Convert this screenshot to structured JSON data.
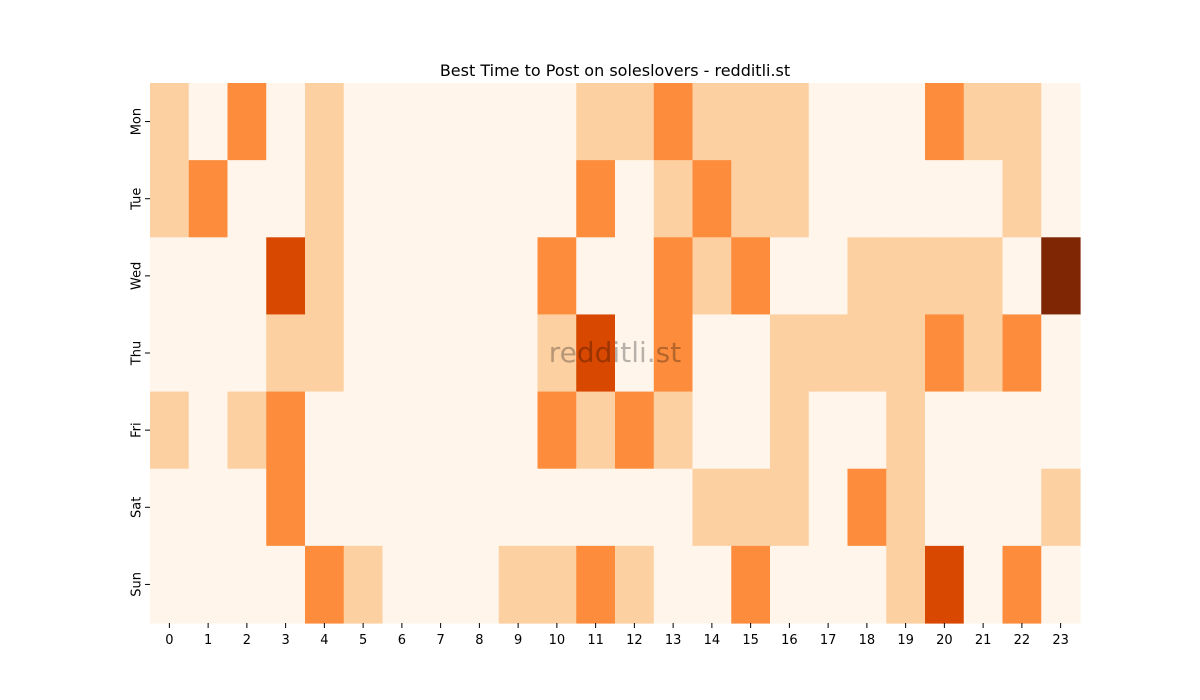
{
  "chart_data": {
    "type": "heatmap",
    "title": "Best Time to Post on soleslovers - redditli.st",
    "watermark": "redditli.st",
    "x": [
      "0",
      "1",
      "2",
      "3",
      "4",
      "5",
      "6",
      "7",
      "8",
      "9",
      "10",
      "11",
      "12",
      "13",
      "14",
      "15",
      "16",
      "17",
      "18",
      "19",
      "20",
      "21",
      "22",
      "23"
    ],
    "y": [
      "Mon",
      "Tue",
      "Wed",
      "Thu",
      "Fri",
      "Sat",
      "Sun"
    ],
    "xlabel": "",
    "ylabel": "",
    "colormap": "Oranges",
    "color_levels": [
      "#fff5eb",
      "#fdd0a2",
      "#fd8d3c",
      "#d94801",
      "#7f2704"
    ],
    "values": [
      [
        1,
        0,
        2,
        0,
        1,
        0,
        0,
        0,
        0,
        0,
        0,
        1,
        1,
        2,
        1,
        1,
        1,
        0,
        0,
        0,
        2,
        1,
        1,
        0
      ],
      [
        1,
        2,
        0,
        0,
        1,
        0,
        0,
        0,
        0,
        0,
        0,
        2,
        0,
        1,
        2,
        1,
        1,
        0,
        0,
        0,
        0,
        0,
        1,
        0
      ],
      [
        0,
        0,
        0,
        3,
        1,
        0,
        0,
        0,
        0,
        0,
        2,
        0,
        0,
        2,
        1,
        2,
        0,
        0,
        1,
        1,
        1,
        1,
        0,
        4
      ],
      [
        0,
        0,
        0,
        1,
        1,
        0,
        0,
        0,
        0,
        0,
        1,
        3,
        0,
        2,
        0,
        0,
        1,
        1,
        1,
        1,
        2,
        1,
        2,
        0
      ],
      [
        1,
        0,
        1,
        2,
        0,
        0,
        0,
        0,
        0,
        0,
        2,
        1,
        2,
        1,
        0,
        0,
        1,
        0,
        0,
        1,
        0,
        0,
        0,
        0
      ],
      [
        0,
        0,
        0,
        2,
        0,
        0,
        0,
        0,
        0,
        0,
        0,
        0,
        0,
        0,
        1,
        1,
        1,
        0,
        2,
        1,
        0,
        0,
        0,
        1
      ],
      [
        0,
        0,
        0,
        0,
        2,
        1,
        0,
        0,
        0,
        1,
        1,
        2,
        1,
        0,
        0,
        2,
        0,
        0,
        0,
        1,
        3,
        0,
        2,
        0
      ]
    ],
    "grid": false,
    "legend": "none"
  }
}
